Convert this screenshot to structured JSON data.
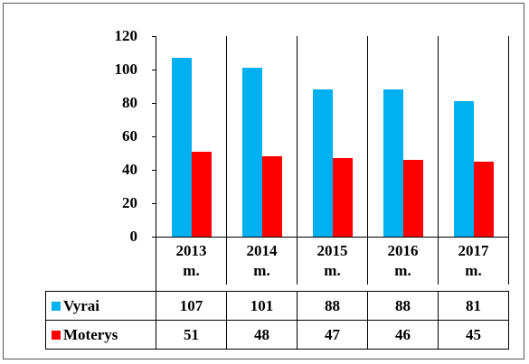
{
  "chart_data": {
    "type": "bar",
    "categories": [
      "2013 m.",
      "2014 m.",
      "2015 m.",
      "2016 m.",
      "2017 m."
    ],
    "series": [
      {
        "name": "Vyrai",
        "color": "#00b0f0",
        "values": [
          107,
          101,
          88,
          88,
          81
        ]
      },
      {
        "name": "Moterys",
        "color": "#ff0000",
        "values": [
          51,
          48,
          47,
          46,
          45
        ]
      }
    ],
    "ylim": [
      0,
      120
    ],
    "yticks": [
      0,
      20,
      40,
      60,
      80,
      100,
      120
    ]
  }
}
